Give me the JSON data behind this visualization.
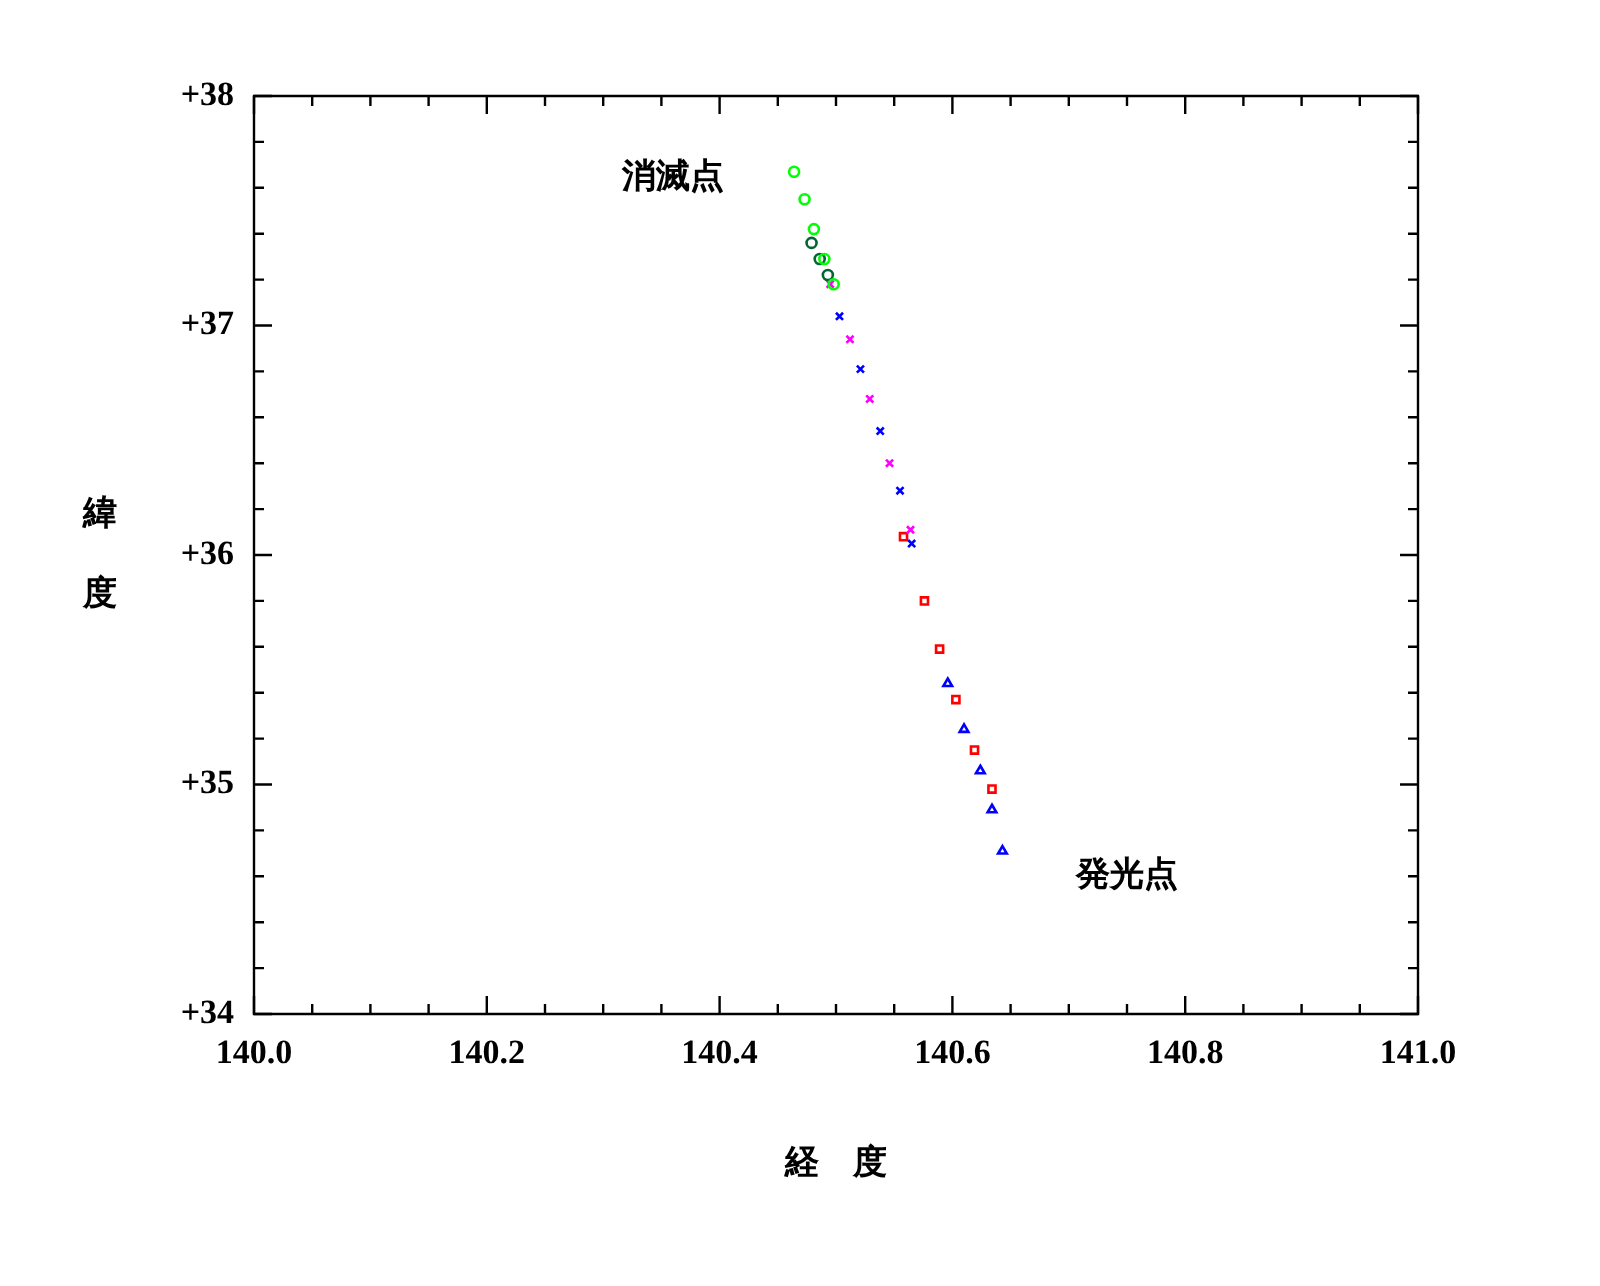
{
  "chart_data": {
    "type": "scatter",
    "xlabel": "経　度",
    "ylabel": "緯度",
    "annotations": [
      "消滅点",
      "発光点"
    ],
    "xlim": [
      140.0,
      141.0
    ],
    "ylim": [
      34,
      38
    ],
    "xticks": [
      {
        "value": 140.0,
        "label": "140.0"
      },
      {
        "value": 140.05,
        "label": null
      },
      {
        "value": 140.1,
        "label": null
      },
      {
        "value": 140.15,
        "label": null
      },
      {
        "value": 140.2,
        "label": "140.2"
      },
      {
        "value": 140.25,
        "label": null
      },
      {
        "value": 140.3,
        "label": null
      },
      {
        "value": 140.35,
        "label": null
      },
      {
        "value": 140.4,
        "label": "140.4"
      },
      {
        "value": 140.45,
        "label": null
      },
      {
        "value": 140.5,
        "label": null
      },
      {
        "value": 140.55,
        "label": null
      },
      {
        "value": 140.6,
        "label": "140.6"
      },
      {
        "value": 140.65,
        "label": null
      },
      {
        "value": 140.7,
        "label": null
      },
      {
        "value": 140.75,
        "label": null
      },
      {
        "value": 140.8,
        "label": "140.8"
      },
      {
        "value": 140.85,
        "label": null
      },
      {
        "value": 140.9,
        "label": null
      },
      {
        "value": 140.95,
        "label": null
      },
      {
        "value": 141.0,
        "label": "141.0"
      }
    ],
    "yticks": [
      {
        "value": 34,
        "label": "+34"
      },
      {
        "value": 34.2,
        "label": null
      },
      {
        "value": 34.4,
        "label": null
      },
      {
        "value": 34.6,
        "label": null
      },
      {
        "value": 34.8,
        "label": null
      },
      {
        "value": 35,
        "label": "+35"
      },
      {
        "value": 35.2,
        "label": null
      },
      {
        "value": 35.4,
        "label": null
      },
      {
        "value": 35.6,
        "label": null
      },
      {
        "value": 35.8,
        "label": null
      },
      {
        "value": 36,
        "label": "+36"
      },
      {
        "value": 36.2,
        "label": null
      },
      {
        "value": 36.4,
        "label": null
      },
      {
        "value": 36.6,
        "label": null
      },
      {
        "value": 36.8,
        "label": null
      },
      {
        "value": 37,
        "label": "+37"
      },
      {
        "value": 37.2,
        "label": null
      },
      {
        "value": 37.4,
        "label": null
      },
      {
        "value": 37.6,
        "label": null
      },
      {
        "value": 37.8,
        "label": null
      },
      {
        "value": 38,
        "label": "+38"
      }
    ],
    "grid": false,
    "legend": false,
    "series": [
      {
        "color": "#00ff00",
        "marker": "circle",
        "x": [
          140.464,
          140.473,
          140.481,
          140.49,
          140.498
        ],
        "values": [
          37.67,
          37.55,
          37.42,
          37.29,
          37.18
        ]
      },
      {
        "color": "#006633",
        "marker": "circle",
        "x": [
          140.479,
          140.486,
          140.493
        ],
        "values": [
          37.36,
          37.29,
          37.22
        ]
      },
      {
        "color": "#ff00ff",
        "marker": "cross",
        "x": [
          140.495,
          140.512,
          140.529,
          140.546,
          140.564
        ],
        "values": [
          37.18,
          36.94,
          36.68,
          36.4,
          36.11
        ]
      },
      {
        "color": "#0000ff",
        "marker": "cross",
        "x": [
          140.503,
          140.521,
          140.538,
          140.555,
          140.565
        ],
        "values": [
          37.04,
          36.81,
          36.54,
          36.28,
          36.05
        ]
      },
      {
        "color": "#ff0000",
        "marker": "square",
        "x": [
          140.558,
          140.576,
          140.589,
          140.603,
          140.619,
          140.634
        ],
        "values": [
          36.08,
          35.8,
          35.59,
          35.37,
          35.15,
          34.98
        ]
      },
      {
        "color": "#0000ff",
        "marker": "triangle",
        "x": [
          140.596,
          140.61,
          140.624,
          140.634,
          140.643
        ],
        "values": [
          35.44,
          35.24,
          35.06,
          34.89,
          34.71
        ]
      }
    ]
  }
}
